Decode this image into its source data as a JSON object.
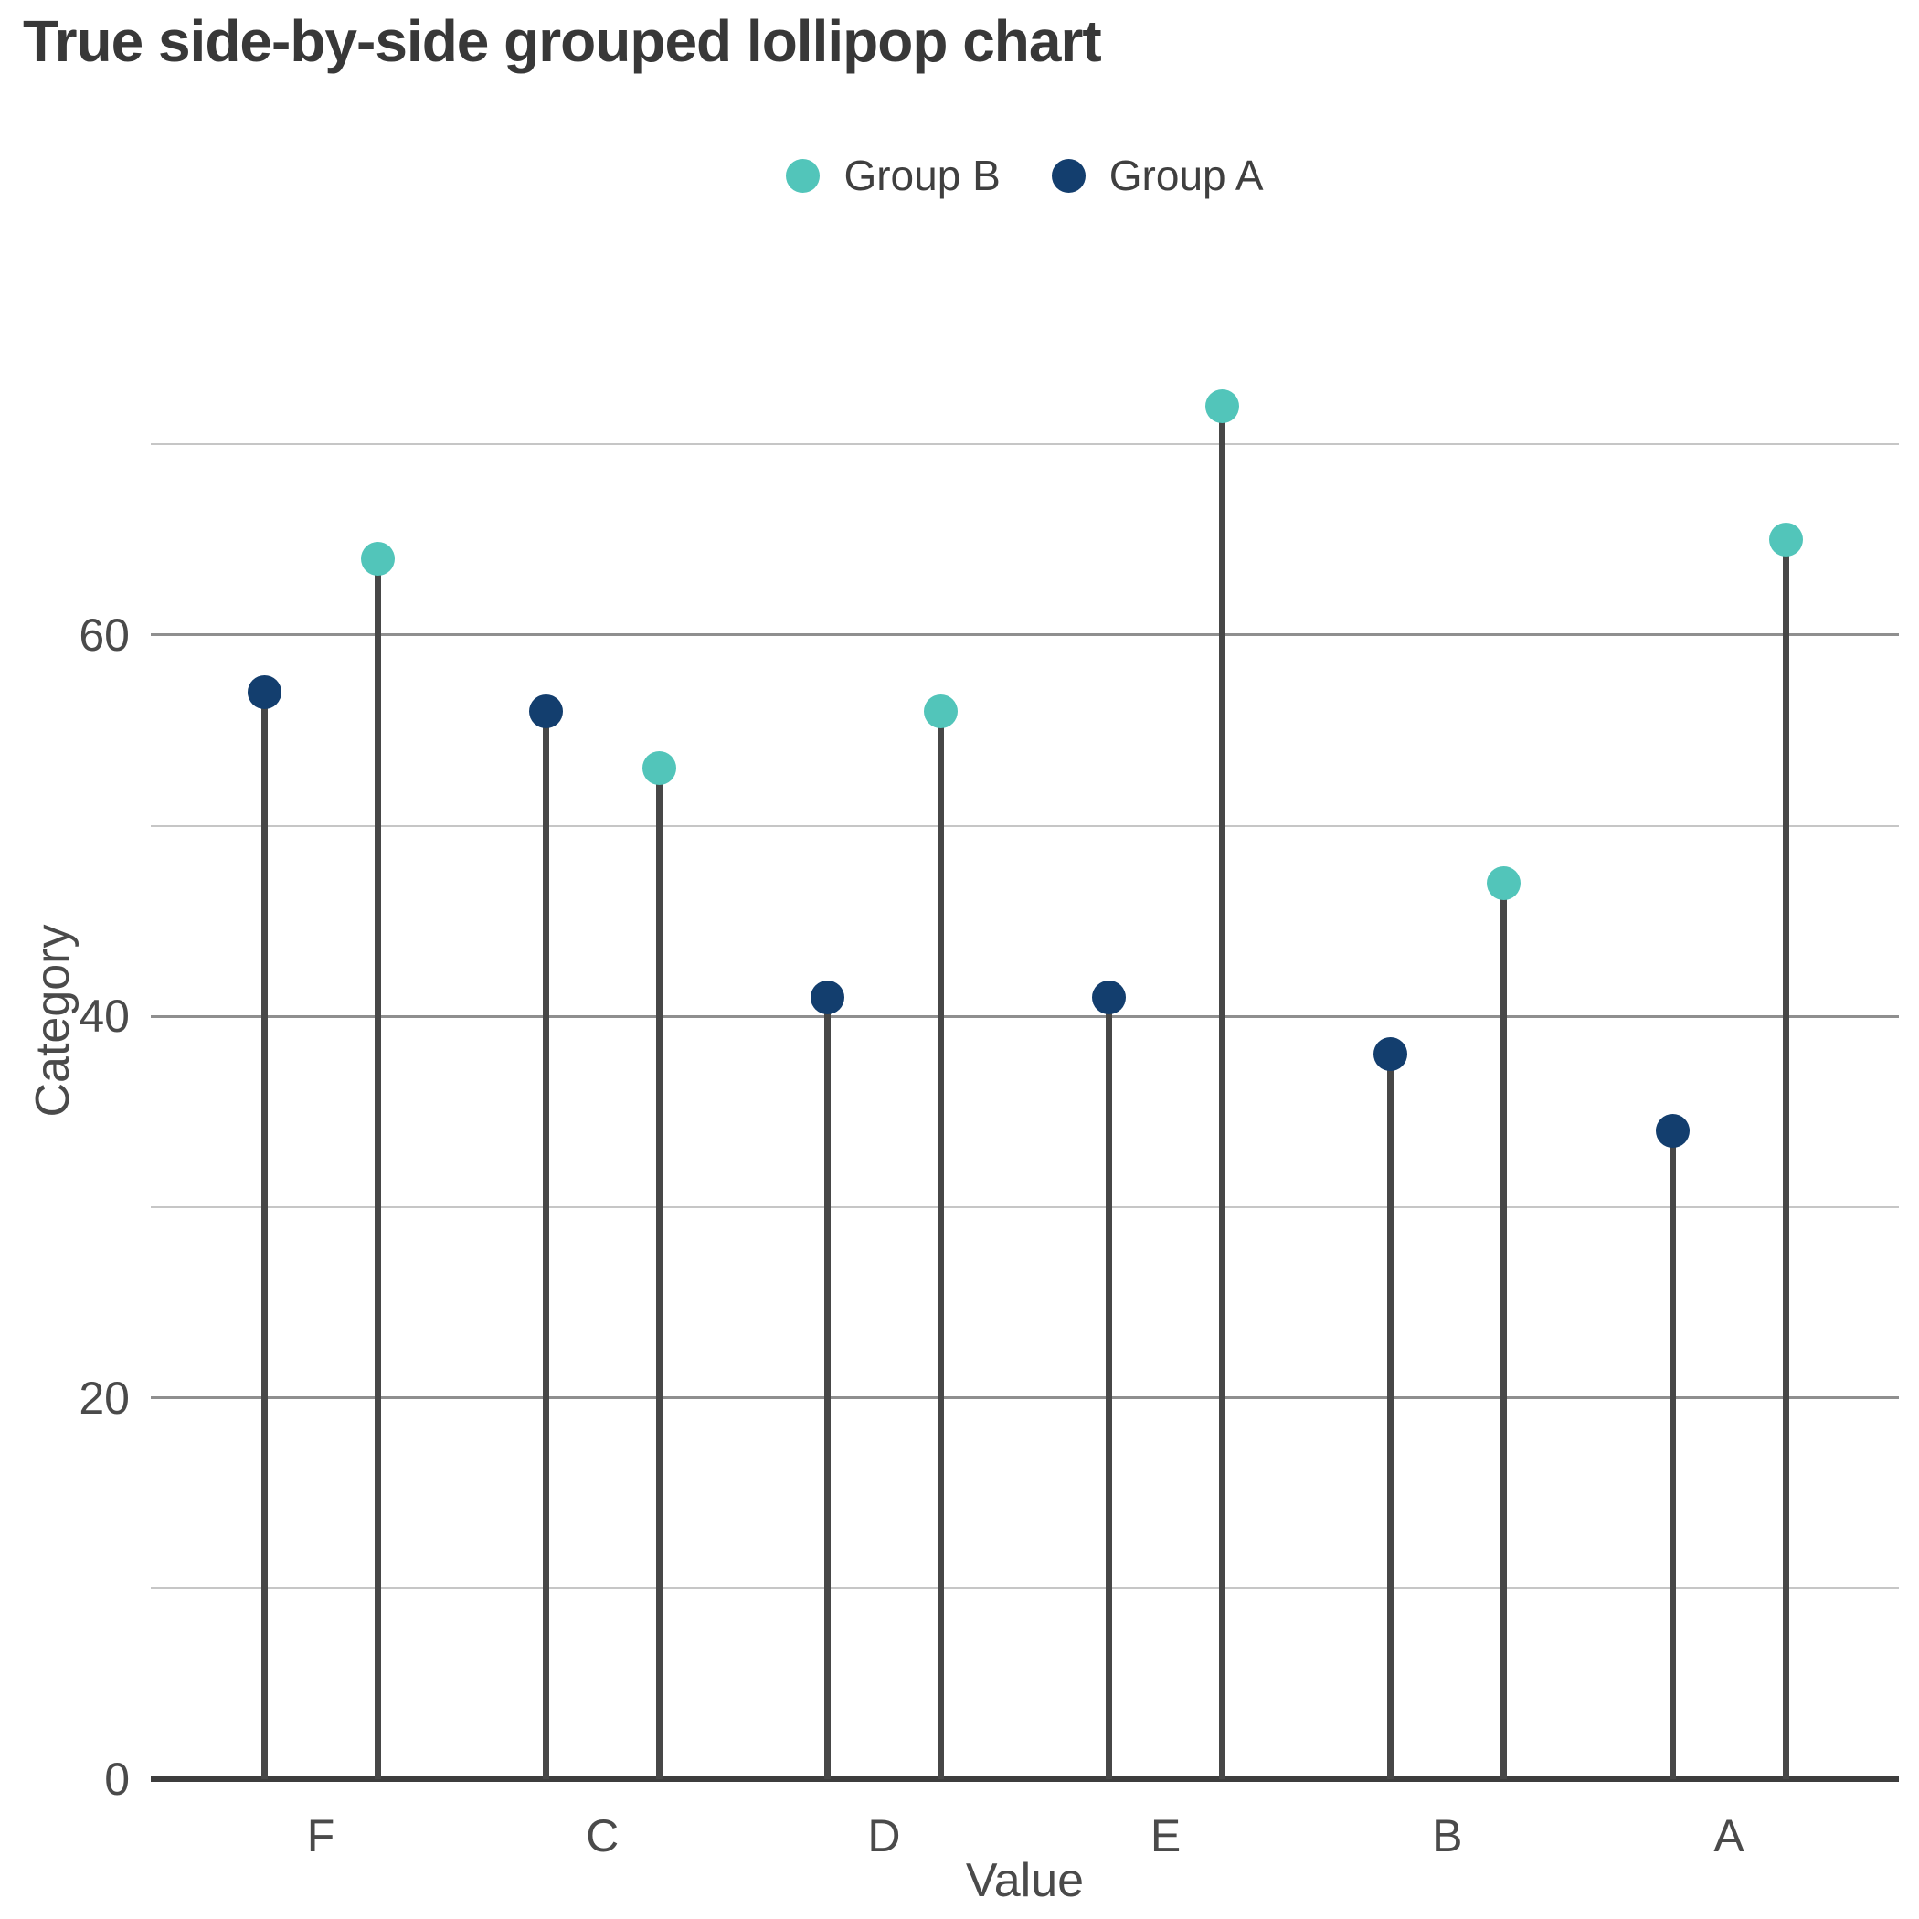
{
  "title": "True side-by-side grouped lollipop chart",
  "legend": {
    "items": [
      {
        "label": "Group B",
        "color": "#52c5ba"
      },
      {
        "label": "Group A",
        "color": "#133e6e"
      }
    ]
  },
  "axes": {
    "x_label": "Value",
    "y_label": "Category"
  },
  "chart_data": {
    "type": "lollipop",
    "title": "True side-by-side grouped lollipop chart",
    "categories": [
      "F",
      "C",
      "D",
      "E",
      "B",
      "A"
    ],
    "series": [
      {
        "name": "Group B",
        "color": "#52c5ba",
        "values": [
          64,
          53,
          56,
          72,
          47,
          65
        ]
      },
      {
        "name": "Group A",
        "color": "#133e6e",
        "values": [
          57,
          56,
          41,
          41,
          38,
          34
        ]
      }
    ],
    "pair_order_left_to_right": [
      "Group A",
      "Group B"
    ],
    "xlabel": "Value",
    "ylabel": "Category",
    "ylim": [
      0,
      77
    ],
    "y_ticks": [
      0,
      20,
      40,
      60
    ],
    "gridlines": {
      "major": [
        20,
        40,
        60
      ],
      "minor": [
        10,
        30,
        50,
        70
      ]
    },
    "grid": true,
    "legend_position": "top-center"
  },
  "colors": {
    "stem": "#474747",
    "axis_line": "#3d3d3d",
    "grid_major": "#8f8f8f",
    "grid_minor": "#c6c6c6",
    "text": "#4a4a4a",
    "title_text": "#383838"
  }
}
